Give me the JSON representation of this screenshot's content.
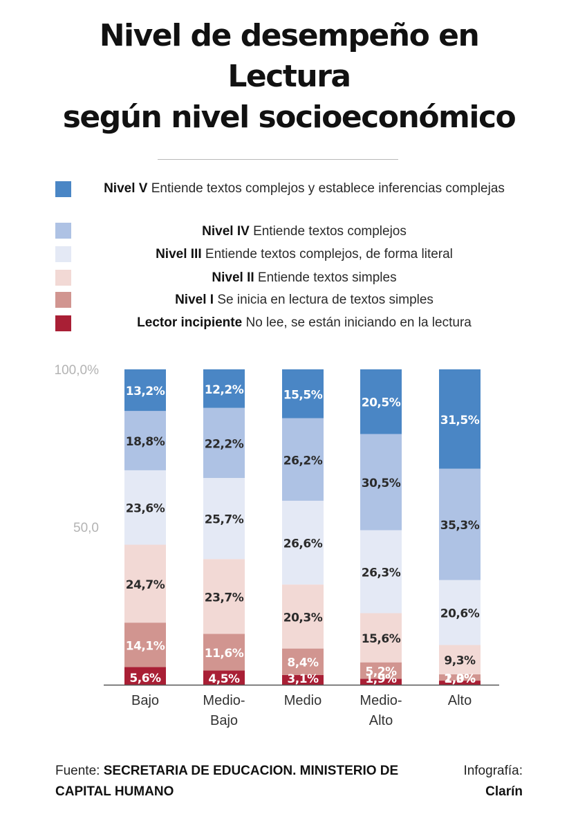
{
  "title_lines": [
    "Nivel de desempeño en",
    "Lectura",
    "según nivel socioeconómico"
  ],
  "legend": [
    {
      "name": "Nivel V",
      "desc": "Entiende textos complejos y establece inferencias complejas",
      "color": "#4a86c5"
    },
    {
      "name": "Nivel IV",
      "desc": "Entiende textos complejos",
      "color": "#aec2e4"
    },
    {
      "name": "Nivel III",
      "desc": "Entiende textos complejos, de forma literal",
      "color": "#e4e9f5"
    },
    {
      "name": "Nivel II",
      "desc": "Entiende textos simples",
      "color": "#f2d9d5"
    },
    {
      "name": "Nivel I",
      "desc": "Se inicia en lectura de textos simples",
      "color": "#d19590"
    },
    {
      "name": "Lector incipiente",
      "desc": "No lee, se están iniciando en la lectura",
      "color": "#a91f35"
    }
  ],
  "chart_data": {
    "type": "bar",
    "stacked": true,
    "categories": [
      "Bajo",
      "Medio-Bajo",
      "Medio",
      "Medio-Alto",
      "Alto"
    ],
    "category_lines": [
      [
        "Bajo"
      ],
      [
        "Medio-",
        "Bajo"
      ],
      [
        "Medio"
      ],
      [
        "Medio-",
        "Alto"
      ],
      [
        "Alto"
      ]
    ],
    "y_ticks": [
      {
        "value": 100,
        "label": "100,0%"
      },
      {
        "value": 50,
        "label": "50,0"
      }
    ],
    "ylim": [
      0,
      100
    ],
    "series": [
      {
        "name": "Lector incipiente",
        "color": "#a91f35",
        "text_color": "#ffffff",
        "values": [
          5.6,
          4.5,
          3.1,
          1.9,
          1.3
        ],
        "labels": [
          "5,6%",
          "4,5%",
          "3,1%",
          "1,9%",
          "1,3%"
        ]
      },
      {
        "name": "Nivel I",
        "color": "#d19590",
        "text_color": "#ffffff",
        "values": [
          14.1,
          11.6,
          8.4,
          5.2,
          2.0
        ],
        "labels": [
          "14,1%",
          "11,6%",
          "8,4%",
          "5,2%",
          "2,0%"
        ]
      },
      {
        "name": "Nivel II",
        "color": "#f2d9d5",
        "text_color": "#2b2b2b",
        "values": [
          24.7,
          23.7,
          20.3,
          15.6,
          9.3
        ],
        "labels": [
          "24,7%",
          "23,7%",
          "20,3%",
          "15,6%",
          "9,3%"
        ]
      },
      {
        "name": "Nivel III",
        "color": "#e4e9f5",
        "text_color": "#2b2b2b",
        "values": [
          23.6,
          25.7,
          26.6,
          26.3,
          20.6
        ],
        "labels": [
          "23,6%",
          "25,7%",
          "26,6%",
          "26,3%",
          "20,6%"
        ]
      },
      {
        "name": "Nivel IV",
        "color": "#aec2e4",
        "text_color": "#2b2b2b",
        "values": [
          18.8,
          22.2,
          26.2,
          30.5,
          35.3
        ],
        "labels": [
          "18,8%",
          "22,2%",
          "26,2%",
          "30,5%",
          "35,3%"
        ]
      },
      {
        "name": "Nivel V",
        "color": "#4a86c5",
        "text_color": "#ffffff",
        "values": [
          13.2,
          12.2,
          15.5,
          20.5,
          31.5
        ],
        "labels": [
          "13,2%",
          "12,2%",
          "15,5%",
          "20,5%",
          "31,5%"
        ]
      }
    ]
  },
  "footer": {
    "source_prefix": "Fuente: ",
    "source_body": "SECRETARIA DE EDUCACION. MINISTERIO DE CAPITAL HUMANO",
    "credit_prefix": "Infografía:",
    "credit_body": "Clarín"
  }
}
